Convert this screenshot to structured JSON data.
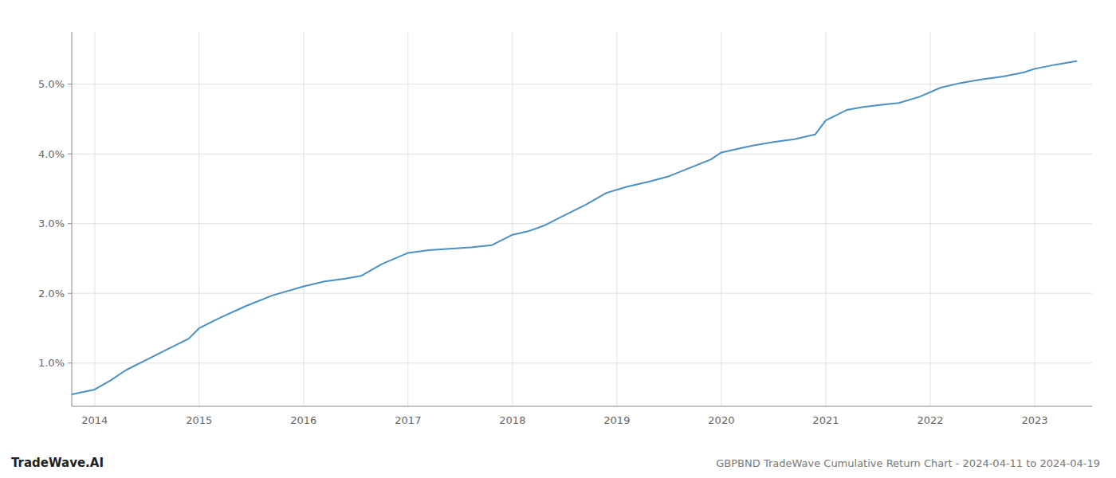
{
  "chart_data": {
    "type": "line",
    "title": "GBPBND TradeWave Cumulative Return Chart - 2024-04-11 to 2024-04-19",
    "annotations": [
      "TradeWave.AI"
    ],
    "color": "#4a90c4",
    "x": [
      2013.78,
      2014.0,
      2014.15,
      2014.3,
      2014.5,
      2014.7,
      2014.9,
      2015.0,
      2015.2,
      2015.45,
      2015.7,
      2016.0,
      2016.2,
      2016.4,
      2016.55,
      2016.75,
      2017.0,
      2017.2,
      2017.4,
      2017.6,
      2017.8,
      2018.0,
      2018.15,
      2018.3,
      2018.5,
      2018.7,
      2018.9,
      2019.1,
      2019.3,
      2019.5,
      2019.7,
      2019.9,
      2020.0,
      2020.15,
      2020.3,
      2020.5,
      2020.7,
      2020.9,
      2021.0,
      2021.2,
      2021.35,
      2021.5,
      2021.7,
      2021.9,
      2022.1,
      2022.3,
      2022.5,
      2022.7,
      2022.9,
      2023.0,
      2023.2,
      2023.4
    ],
    "values": [
      0.55,
      0.62,
      0.75,
      0.9,
      1.05,
      1.2,
      1.35,
      1.5,
      1.65,
      1.82,
      1.97,
      2.1,
      2.17,
      2.21,
      2.25,
      2.42,
      2.58,
      2.62,
      2.64,
      2.66,
      2.69,
      2.84,
      2.89,
      2.97,
      3.12,
      3.27,
      3.44,
      3.53,
      3.6,
      3.68,
      3.8,
      3.92,
      4.02,
      4.07,
      4.12,
      4.17,
      4.21,
      4.28,
      4.48,
      4.63,
      4.67,
      4.7,
      4.73,
      4.82,
      4.95,
      5.02,
      5.07,
      5.11,
      5.17,
      5.22,
      5.28,
      5.33
    ],
    "xlim": [
      2013.78,
      2023.55
    ],
    "ylim": [
      0.38,
      5.75
    ],
    "xticks": [
      2014,
      2015,
      2016,
      2017,
      2018,
      2019,
      2020,
      2021,
      2022,
      2023
    ],
    "yticks": [
      {
        "value": 1.0,
        "label": "1.0%"
      },
      {
        "value": 2.0,
        "label": "2.0%"
      },
      {
        "value": 3.0,
        "label": "3.0%"
      },
      {
        "value": 4.0,
        "label": "4.0%"
      },
      {
        "value": 5.0,
        "label": "5.0%"
      }
    ],
    "grid": true
  }
}
